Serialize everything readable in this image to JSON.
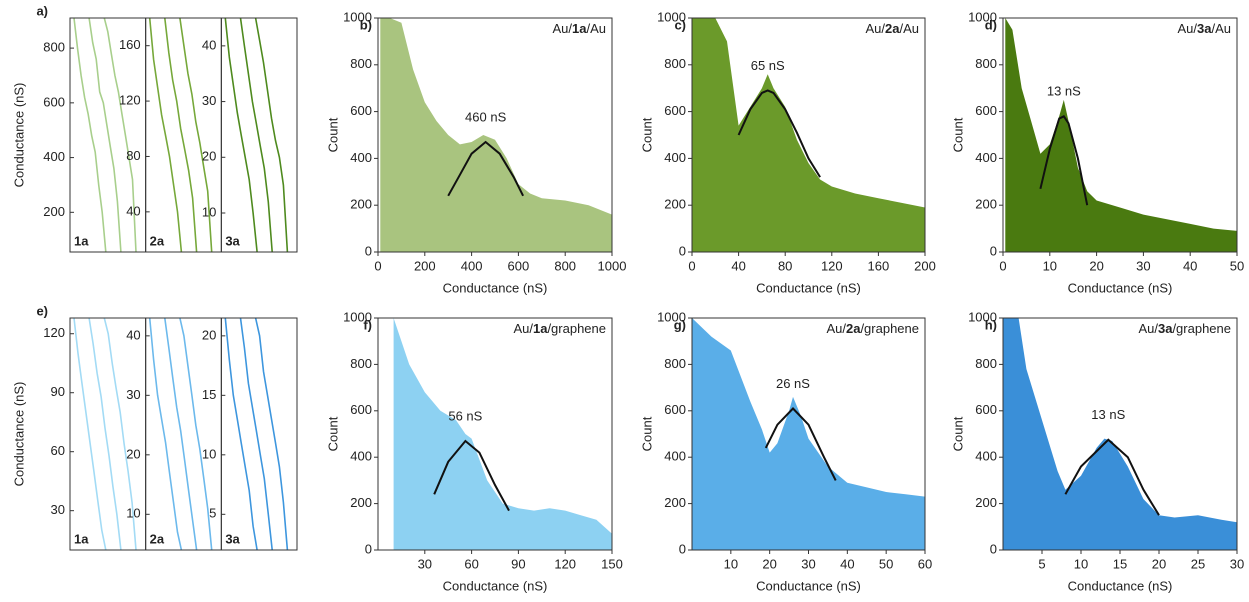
{
  "chart_data": [
    {
      "type": "traces",
      "panel": "a)",
      "ylabel": "Conductance (nS)",
      "subpanels": [
        {
          "name": "1a",
          "color": "#a8cf8c",
          "ylim": [
            55,
            910
          ],
          "yticks": [
            200,
            400,
            600,
            800
          ],
          "series": [
            {
              "values": [
                910,
                800,
                700,
                620,
                560,
                480,
                420,
                300,
                200,
                55
              ]
            },
            {
              "values": [
                910,
                820,
                760,
                640,
                600,
                520,
                440,
                360,
                240,
                55
              ]
            },
            {
              "values": [
                910,
                860,
                780,
                700,
                640,
                560,
                480,
                400,
                320,
                55
              ]
            }
          ]
        },
        {
          "name": "2a",
          "color": "#76a83a",
          "ylim": [
            11,
            180
          ],
          "yticks": [
            40,
            80,
            120,
            160
          ],
          "series": [
            {
              "values": [
                180,
                150,
                130,
                110,
                95,
                80,
                60,
                40,
                11
              ]
            },
            {
              "values": [
                180,
                155,
                135,
                120,
                100,
                85,
                70,
                50,
                11
              ]
            },
            {
              "values": [
                180,
                160,
                140,
                125,
                105,
                90,
                72,
                55,
                11
              ]
            }
          ]
        },
        {
          "name": "3a",
          "color": "#4e8a1e",
          "ylim": [
            3,
            45
          ],
          "yticks": [
            10,
            20,
            30,
            40
          ],
          "series": [
            {
              "values": [
                45,
                38,
                33,
                28,
                24,
                20,
                16,
                10,
                3
              ]
            },
            {
              "values": [
                45,
                40,
                35,
                30,
                26,
                22,
                18,
                12,
                3
              ]
            },
            {
              "values": [
                45,
                41,
                37,
                32,
                27,
                23,
                20,
                15,
                3
              ]
            }
          ]
        }
      ]
    },
    {
      "type": "histogram",
      "panel": "b)",
      "sample_label": [
        "Au/",
        "1a",
        "/Au"
      ],
      "xlabel": "Conductance (nS)",
      "ylabel": "Count",
      "color": "#a9c47f",
      "xlim": [
        0,
        1000
      ],
      "xticks": [
        0,
        200,
        400,
        600,
        800,
        1000
      ],
      "ylim": [
        0,
        1000
      ],
      "yticks": [
        0,
        200,
        400,
        600,
        800,
        1000
      ],
      "x": [
        10,
        50,
        100,
        150,
        200,
        250,
        300,
        350,
        400,
        450,
        500,
        550,
        600,
        650,
        700,
        800,
        900,
        1000
      ],
      "values": [
        1000,
        1000,
        980,
        780,
        640,
        560,
        500,
        460,
        470,
        500,
        480,
        400,
        290,
        250,
        230,
        220,
        200,
        160
      ],
      "fit": {
        "x": [
          300,
          350,
          400,
          460,
          520,
          580,
          620
        ],
        "values": [
          240,
          330,
          420,
          470,
          420,
          320,
          240
        ]
      },
      "peak_label": "460 nS"
    },
    {
      "type": "histogram",
      "panel": "c)",
      "sample_label": [
        "Au/",
        "2a",
        "/Au"
      ],
      "xlabel": "Conductance (nS)",
      "ylabel": "Count",
      "color": "#6b9a2a",
      "xlim": [
        0,
        200
      ],
      "xticks": [
        0,
        40,
        80,
        120,
        160,
        200
      ],
      "ylim": [
        0,
        1000
      ],
      "yticks": [
        0,
        200,
        400,
        600,
        800,
        1000
      ],
      "x": [
        0,
        10,
        20,
        30,
        40,
        50,
        60,
        65,
        70,
        80,
        90,
        100,
        110,
        120,
        140,
        160,
        180,
        200
      ],
      "values": [
        1000,
        1000,
        1000,
        900,
        540,
        620,
        700,
        760,
        700,
        620,
        480,
        380,
        310,
        280,
        250,
        230,
        210,
        190
      ],
      "fit": {
        "x": [
          40,
          50,
          60,
          65,
          70,
          80,
          90,
          100,
          110
        ],
        "values": [
          500,
          610,
          680,
          690,
          680,
          610,
          510,
          400,
          320
        ]
      },
      "peak_label": "65 nS"
    },
    {
      "type": "histogram",
      "panel": "d)",
      "sample_label": [
        "Au/",
        "3a",
        "/Au"
      ],
      "xlabel": "Conductance (nS)",
      "ylabel": "Count",
      "color": "#4a7a10",
      "xlim": [
        0,
        50
      ],
      "xticks": [
        0,
        10,
        20,
        30,
        40,
        50
      ],
      "ylim": [
        0,
        1000
      ],
      "yticks": [
        0,
        200,
        400,
        600,
        800,
        1000
      ],
      "x": [
        0.5,
        2,
        4,
        6,
        8,
        10,
        12,
        13,
        14,
        16,
        18,
        20,
        25,
        30,
        35,
        40,
        45,
        50
      ],
      "values": [
        1000,
        950,
        700,
        560,
        420,
        460,
        580,
        650,
        560,
        360,
        260,
        220,
        190,
        160,
        140,
        120,
        100,
        90
      ],
      "fit": {
        "x": [
          8,
          10,
          12,
          13,
          14,
          16,
          18
        ],
        "values": [
          270,
          440,
          570,
          580,
          550,
          400,
          200
        ]
      },
      "peak_label": "13 nS"
    },
    {
      "type": "traces",
      "panel": "e)",
      "ylabel": "Conductance (nS)",
      "subpanels": [
        {
          "name": "1a",
          "color": "#a3dbf5",
          "ylim": [
            10,
            128
          ],
          "yticks": [
            30,
            60,
            90,
            120
          ],
          "series": [
            {
              "values": [
                128,
                110,
                95,
                80,
                65,
                50,
                35,
                20,
                10
              ]
            },
            {
              "values": [
                128,
                115,
                100,
                88,
                72,
                58,
                42,
                28,
                10
              ]
            },
            {
              "values": [
                128,
                120,
                105,
                92,
                80,
                64,
                50,
                34,
                10
              ]
            }
          ]
        },
        {
          "name": "2a",
          "color": "#6cb9ec",
          "ylim": [
            4,
            43
          ],
          "yticks": [
            10,
            20,
            30,
            40
          ],
          "series": [
            {
              "values": [
                43,
                36,
                30,
                26,
                22,
                17,
                12,
                7,
                4
              ]
            },
            {
              "values": [
                43,
                38,
                33,
                28,
                24,
                19,
                14,
                9,
                4
              ]
            },
            {
              "values": [
                43,
                40,
                35,
                30,
                25,
                21,
                16,
                11,
                4
              ]
            }
          ]
        },
        {
          "name": "3a",
          "color": "#3d96de",
          "ylim": [
            2,
            21.5
          ],
          "yticks": [
            5,
            10,
            15,
            20
          ],
          "series": [
            {
              "values": [
                21.5,
                18,
                15,
                13,
                11,
                9,
                7,
                4,
                2
              ]
            },
            {
              "values": [
                21.5,
                19,
                16,
                14,
                12,
                10,
                8,
                5,
                2
              ]
            },
            {
              "values": [
                21.5,
                20,
                17,
                15,
                13,
                11,
                9,
                6,
                2
              ]
            }
          ]
        }
      ]
    },
    {
      "type": "histogram",
      "panel": "f)",
      "sample_label": [
        "Au/",
        "1a",
        "/graphene"
      ],
      "xlabel": "Conductance (nS)",
      "ylabel": "Count",
      "color": "#8dd1f2",
      "xlim": [
        0,
        150
      ],
      "xticks": [
        30,
        60,
        90,
        120,
        150
      ],
      "ylim": [
        0,
        1000
      ],
      "yticks": [
        0,
        200,
        400,
        600,
        800,
        1000
      ],
      "x": [
        10,
        20,
        30,
        40,
        50,
        56,
        60,
        70,
        80,
        90,
        100,
        110,
        120,
        130,
        140,
        150
      ],
      "values": [
        1000,
        800,
        680,
        600,
        560,
        500,
        480,
        300,
        200,
        180,
        170,
        180,
        170,
        150,
        130,
        70
      ],
      "fit": {
        "x": [
          36,
          45,
          56,
          65,
          75,
          84
        ],
        "values": [
          240,
          380,
          470,
          420,
          280,
          170
        ]
      },
      "peak_label": "56 nS"
    },
    {
      "type": "histogram",
      "panel": "g)",
      "sample_label": [
        "Au/",
        "2a",
        "/graphene"
      ],
      "xlabel": "Conductance (nS)",
      "ylabel": "Count",
      "color": "#5aaee8",
      "xlim": [
        0,
        60
      ],
      "xticks": [
        10,
        20,
        30,
        40,
        50,
        60
      ],
      "ylim": [
        0,
        1000
      ],
      "yticks": [
        0,
        200,
        400,
        600,
        800,
        1000
      ],
      "x": [
        0,
        5,
        10,
        15,
        18,
        20,
        22,
        25,
        26,
        28,
        30,
        35,
        40,
        45,
        50,
        55,
        60
      ],
      "values": [
        1000,
        920,
        860,
        640,
        520,
        420,
        460,
        600,
        660,
        580,
        480,
        360,
        290,
        270,
        250,
        240,
        230
      ],
      "fit": {
        "x": [
          19,
          22,
          26,
          30,
          34,
          37
        ],
        "values": [
          440,
          540,
          610,
          540,
          400,
          300
        ]
      },
      "peak_label": "26 nS"
    },
    {
      "type": "histogram",
      "panel": "h)",
      "sample_label": [
        "Au/",
        "3a",
        "/graphene"
      ],
      "xlabel": "Conductance (nS)",
      "ylabel": "Count",
      "color": "#3a8fd8",
      "xlim": [
        0,
        30
      ],
      "xticks": [
        5,
        10,
        15,
        20,
        25,
        30
      ],
      "ylim": [
        0,
        1000
      ],
      "yticks": [
        0,
        200,
        400,
        600,
        800,
        1000
      ],
      "x": [
        0,
        2,
        3,
        5,
        7,
        8,
        10,
        12,
        13,
        14,
        16,
        18,
        20,
        22,
        25,
        28,
        30
      ],
      "values": [
        1000,
        1000,
        780,
        560,
        340,
        260,
        320,
        440,
        480,
        470,
        360,
        220,
        150,
        140,
        150,
        130,
        120
      ],
      "fit": {
        "x": [
          8,
          10,
          13.5,
          16,
          18,
          20
        ],
        "values": [
          240,
          360,
          475,
          400,
          260,
          150
        ]
      },
      "peak_label": "13 nS"
    }
  ]
}
